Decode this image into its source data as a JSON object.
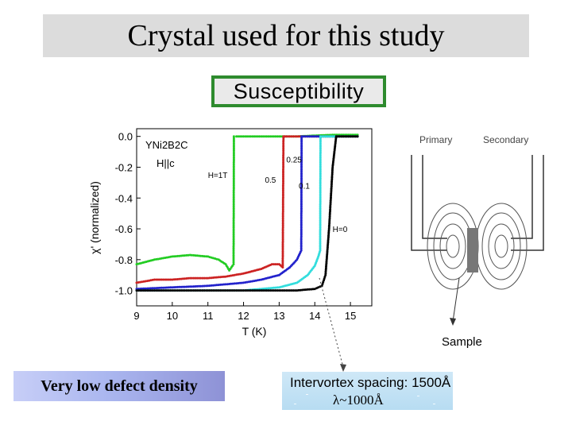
{
  "slide": {
    "title": "Crystal used for this study",
    "susceptibility_label": "Susceptibility",
    "defect_label": "Very low defect density",
    "intervortex_label": "Intervortex spacing: 1500Å",
    "lambda_label": "λ~1000Å"
  },
  "diagram": {
    "primary": "Primary",
    "secondary": "Secondary",
    "sample": "Sample"
  },
  "colors": {
    "title_bg": "#dcdcdc",
    "green": "#22cc22",
    "red": "#cc2222",
    "blue": "#2222cc",
    "cyan": "#33dddd",
    "black": "#000000"
  },
  "chart_data": {
    "type": "line",
    "title": "",
    "xlabel": "T (K)",
    "ylabel": "χ' (normalized)",
    "xlim": [
      9,
      15.6
    ],
    "ylim": [
      -1.1,
      0.05
    ],
    "xticks": [
      9,
      10,
      11,
      12,
      13,
      14,
      15
    ],
    "yticks": [
      0.0,
      -0.2,
      -0.4,
      -0.6,
      -0.8,
      -1.0
    ],
    "xtick_labels": [
      "9",
      "10",
      "11",
      "12",
      "13",
      "14",
      "15"
    ],
    "ytick_labels": [
      "0.0",
      "-0.2",
      "-0.4",
      "-0.6",
      "-0.8",
      "-1.0"
    ],
    "sample_label": "YNi2B2C",
    "field_dir_label": "H||c",
    "series": [
      {
        "name": "H=1T",
        "color": "#22cc22",
        "x": [
          9.0,
          9.5,
          10.0,
          10.5,
          11.0,
          11.3,
          11.5,
          11.6,
          11.72,
          11.73,
          11.8,
          12.5,
          13.5,
          14.5,
          15.2
        ],
        "y": [
          -0.83,
          -0.8,
          -0.78,
          -0.77,
          -0.78,
          -0.8,
          -0.83,
          -0.87,
          -0.83,
          0.0,
          0.0,
          0.0,
          0.0,
          0.01,
          0.01
        ]
      },
      {
        "name": "0.5",
        "color": "#cc2222",
        "x": [
          9.0,
          9.5,
          10.0,
          10.5,
          11.0,
          11.5,
          12.0,
          12.5,
          12.8,
          13.0,
          13.1,
          13.12,
          13.2,
          14.0,
          15.0,
          15.2
        ],
        "y": [
          -0.95,
          -0.93,
          -0.93,
          -0.92,
          -0.92,
          -0.91,
          -0.89,
          -0.86,
          -0.83,
          -0.83,
          -0.85,
          0.0,
          0.0,
          0.0,
          0.0,
          0.0
        ]
      },
      {
        "name": "0.25",
        "color": "#2222cc",
        "x": [
          9.0,
          10.0,
          11.0,
          12.0,
          12.5,
          13.0,
          13.3,
          13.5,
          13.62,
          13.63,
          13.8,
          14.5,
          15.2
        ],
        "y": [
          -0.99,
          -0.98,
          -0.97,
          -0.95,
          -0.93,
          -0.9,
          -0.85,
          -0.8,
          -0.74,
          0.0,
          0.0,
          0.0,
          0.0
        ]
      },
      {
        "name": "0.1",
        "color": "#33dddd",
        "x": [
          9.0,
          10.0,
          11.0,
          12.0,
          12.5,
          13.0,
          13.5,
          13.8,
          14.0,
          14.1,
          14.15,
          14.16,
          14.3,
          15.0,
          15.2
        ],
        "y": [
          -1.0,
          -1.0,
          -1.0,
          -1.0,
          -0.99,
          -0.98,
          -0.95,
          -0.9,
          -0.84,
          -0.78,
          -0.74,
          0.0,
          0.0,
          0.0,
          0.0
        ]
      },
      {
        "name": "H=0",
        "color": "#000000",
        "x": [
          9.0,
          10.0,
          11.0,
          12.0,
          13.0,
          13.5,
          14.0,
          14.2,
          14.3,
          14.4,
          14.5,
          14.6,
          15.0,
          15.2
        ],
        "y": [
          -1.0,
          -1.0,
          -1.0,
          -1.0,
          -1.0,
          -1.0,
          -0.99,
          -0.97,
          -0.9,
          -0.6,
          -0.2,
          0.0,
          0.0,
          0.0
        ]
      }
    ],
    "annotations": [
      {
        "text": "H=1T",
        "x": 11.0,
        "y": -0.27
      },
      {
        "text": "0.25",
        "x": 13.2,
        "y": -0.17
      },
      {
        "text": "0.5",
        "x": 12.6,
        "y": -0.3
      },
      {
        "text": "0.1",
        "x": 13.55,
        "y": -0.34
      },
      {
        "text": "H=0",
        "x": 14.5,
        "y": -0.62
      }
    ]
  }
}
